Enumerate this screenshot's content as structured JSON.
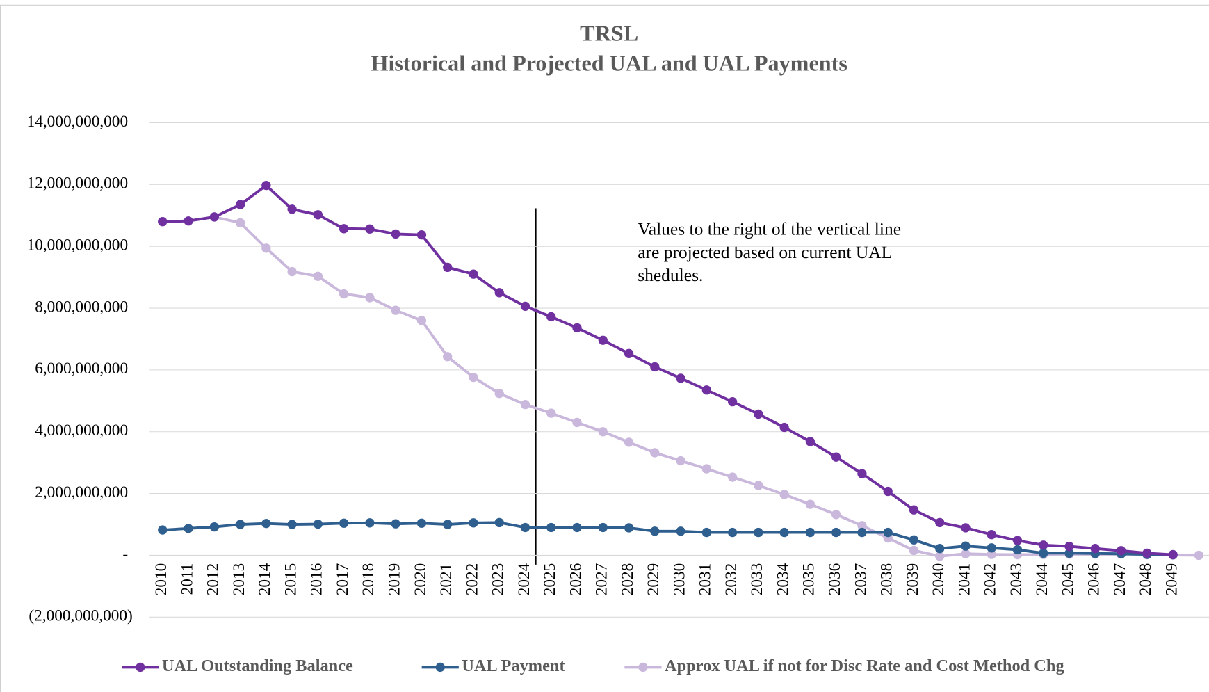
{
  "chart_data": {
    "type": "line",
    "title": "TRSL",
    "subtitle": "Historical and Projected UAL and UAL Payments",
    "annotation": [
      "Values to the right of the vertical line",
      "are projected based on current UAL",
      "shedules."
    ],
    "categories": [
      "2010",
      "2011",
      "2012",
      "2013",
      "2014",
      "2015",
      "2016",
      "2017",
      "2018",
      "2019",
      "2020",
      "2021",
      "2022",
      "2023",
      "2024",
      "2025",
      "2026",
      "2027",
      "2028",
      "2029",
      "2030",
      "2031",
      "2032",
      "2033",
      "2034",
      "2035",
      "2036",
      "2037",
      "2038",
      "2039",
      "2040",
      "2041",
      "2042",
      "2043",
      "2044",
      "2045",
      "2046",
      "2047",
      "2048",
      "2049",
      null
    ],
    "series": [
      {
        "name": "UAL Outstanding Balance",
        "color": "#7030a0",
        "values": [
          10800000000,
          10820000000,
          10950000000,
          11350000000,
          11970000000,
          11200000000,
          11020000000,
          10570000000,
          10560000000,
          10400000000,
          10370000000,
          9320000000,
          9100000000,
          8500000000,
          8060000000,
          7720000000,
          7360000000,
          6960000000,
          6530000000,
          6100000000,
          5730000000,
          5350000000,
          4970000000,
          4570000000,
          4140000000,
          3680000000,
          3180000000,
          2640000000,
          2070000000,
          1470000000,
          1060000000,
          890000000,
          670000000,
          480000000,
          330000000,
          290000000,
          220000000,
          150000000,
          70000000,
          20000000,
          null
        ]
      },
      {
        "name": "UAL Payment",
        "color": "#2f5f8f",
        "values": [
          820000000,
          870000000,
          920000000,
          1000000000,
          1030000000,
          1000000000,
          1010000000,
          1040000000,
          1050000000,
          1020000000,
          1040000000,
          1000000000,
          1050000000,
          1060000000,
          900000000,
          900000000,
          900000000,
          900000000,
          890000000,
          780000000,
          780000000,
          740000000,
          740000000,
          740000000,
          740000000,
          740000000,
          740000000,
          740000000,
          740000000,
          500000000,
          220000000,
          300000000,
          240000000,
          180000000,
          70000000,
          70000000,
          60000000,
          50000000,
          30000000,
          20000000,
          null
        ]
      },
      {
        "name": "Approx UAL if not for Disc Rate and Cost Method Chg",
        "color": "#c9b8db",
        "values": [
          10800000000,
          10820000000,
          10950000000,
          10760000000,
          9940000000,
          9180000000,
          9030000000,
          8460000000,
          8340000000,
          7930000000,
          7600000000,
          6430000000,
          5760000000,
          5240000000,
          4880000000,
          4600000000,
          4300000000,
          4000000000,
          3660000000,
          3320000000,
          3060000000,
          2800000000,
          2530000000,
          2260000000,
          1970000000,
          1650000000,
          1320000000,
          960000000,
          560000000,
          160000000,
          -30000000,
          50000000,
          30000000,
          20000000,
          30000000,
          40000000,
          40000000,
          40000000,
          20000000,
          10000000,
          0
        ]
      }
    ],
    "ylim": [
      -2000000000,
      14000000000
    ],
    "yticks": [
      {
        "value": -2000000000,
        "label": "(2,000,000,000)"
      },
      {
        "value": 0,
        "label": "-"
      },
      {
        "value": 2000000000,
        "label": "2,000,000,000"
      },
      {
        "value": 4000000000,
        "label": "4,000,000,000"
      },
      {
        "value": 6000000000,
        "label": "6,000,000,000"
      },
      {
        "value": 8000000000,
        "label": "8,000,000,000"
      },
      {
        "value": 10000000000,
        "label": "10,000,000,000"
      },
      {
        "value": 12000000000,
        "label": "12,000,000,000"
      },
      {
        "value": 14000000000,
        "label": "14,000,000,000"
      }
    ],
    "grid": true,
    "legend": "bottom"
  }
}
